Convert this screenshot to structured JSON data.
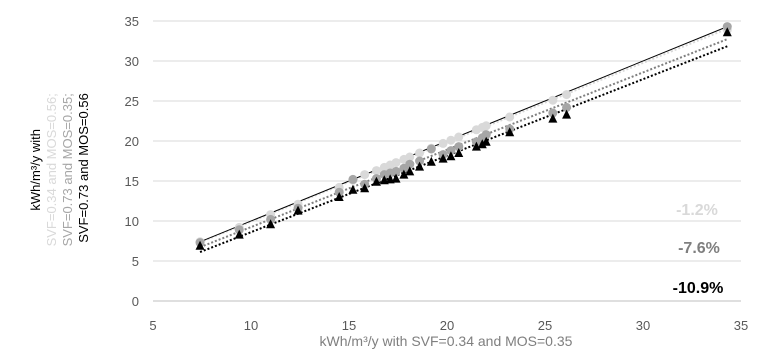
{
  "chart_data": {
    "type": "scatter",
    "xlabel": "kWh/m³/y with SVF=0.34 and MOS=0.35",
    "ylabel_lines": [
      {
        "text": "kWh/m³/y with",
        "color": "#000000"
      },
      {
        "text": "SVF=0.34 and MOS=0.56;",
        "color": "#d9d9d9"
      },
      {
        "text": "SVF=0.73 and MOS=0.35;",
        "color": "#a6a6a6"
      },
      {
        "text": "SVF=0.73 and MOS=0.56",
        "color": "#000000"
      }
    ],
    "xlim": [
      5,
      35
    ],
    "ylim": [
      0,
      35
    ],
    "xticks": [
      5,
      10,
      15,
      20,
      25,
      30,
      35
    ],
    "yticks": [
      0,
      5,
      10,
      15,
      20,
      25,
      30,
      35
    ],
    "grid": "horizontal",
    "x": [
      7.4,
      9.4,
      11.0,
      12.4,
      14.5,
      15.2,
      15.8,
      16.4,
      16.8,
      17.1,
      17.4,
      17.8,
      18.1,
      18.6,
      19.2,
      19.8,
      20.2,
      20.6,
      21.5,
      21.8,
      22.0,
      23.2,
      25.4,
      26.1,
      34.3
    ],
    "series": [
      {
        "marker": "circle",
        "color": "#d9d9d9",
        "trend_color": "#d9d9d9",
        "trend_style": "dotted",
        "values": [
          7.4,
          9.2,
          10.8,
          12.1,
          14.2,
          15.1,
          15.8,
          16.3,
          16.7,
          17.0,
          17.3,
          17.7,
          18.0,
          18.5,
          19.1,
          19.7,
          20.1,
          20.5,
          21.4,
          21.7,
          21.9,
          23.0,
          25.1,
          25.8,
          33.9
        ]
      },
      {
        "marker": "circle",
        "color": "#a6a6a6",
        "trend_color": "#7f7f7f",
        "trend_style": "dotted",
        "values": [
          7.3,
          8.9,
          10.2,
          11.6,
          13.6,
          15.2,
          14.6,
          15.3,
          15.8,
          16.0,
          16.2,
          16.6,
          17.1,
          17.5,
          19.0,
          18.3,
          18.8,
          19.3,
          19.9,
          20.4,
          20.8,
          21.5,
          23.5,
          24.2,
          34.3
        ]
      },
      {
        "marker": "triangle",
        "color": "#000000",
        "trend_color": "#000000",
        "trend_style": "dotted",
        "values": [
          6.9,
          8.3,
          9.6,
          11.3,
          13.0,
          13.9,
          14.1,
          14.9,
          15.1,
          15.2,
          15.3,
          15.8,
          16.2,
          16.8,
          17.4,
          17.8,
          18.1,
          18.5,
          19.3,
          19.6,
          19.9,
          21.1,
          22.8,
          23.3,
          33.6
        ]
      }
    ],
    "reference_line": {
      "color": "#000000",
      "from": [
        7.4,
        7.4
      ],
      "to": [
        34.3,
        34.3
      ]
    },
    "annotations": [
      {
        "text": "-1.2%",
        "color": "#d9d9d9"
      },
      {
        "text": "-7.6%",
        "color": "#7f7f7f"
      },
      {
        "text": "-10.9%",
        "color": "#000000"
      }
    ]
  }
}
